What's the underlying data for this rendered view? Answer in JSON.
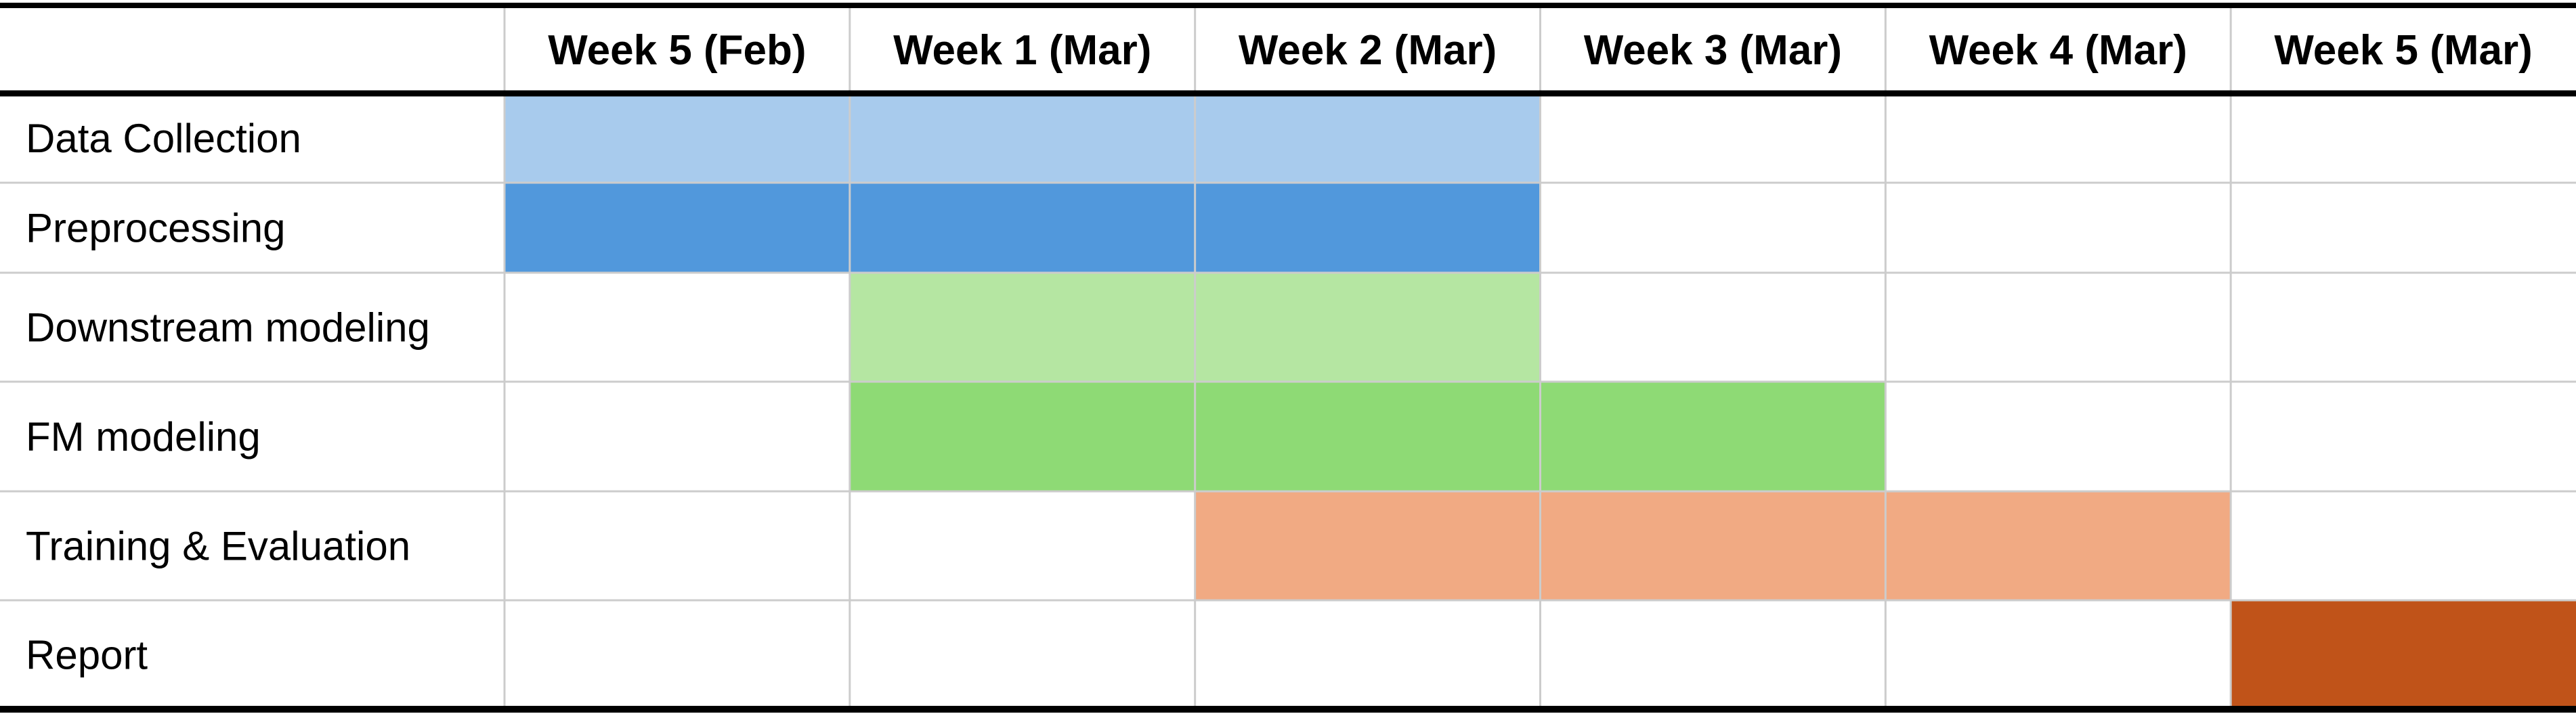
{
  "chart_data": {
    "type": "table",
    "title": "",
    "columns": [
      "Week 5 (Feb)",
      "Week 1 (Mar)",
      "Week 2 (Mar)",
      "Week 3 (Mar)",
      "Week 4 (Mar)",
      "Week 5 (Mar)"
    ],
    "tasks": [
      {
        "name": "Data Collection",
        "start": 0,
        "end": 2,
        "color": "#a8cbed"
      },
      {
        "name": "Preprocessing",
        "start": 0,
        "end": 2,
        "color": "#5198dc"
      },
      {
        "name": "Downstream modeling",
        "start": 1,
        "end": 2,
        "color": "#b5e6a2"
      },
      {
        "name": "FM modeling",
        "start": 1,
        "end": 3,
        "color": "#8eda75"
      },
      {
        "name": "Training & Evaluation",
        "start": 2,
        "end": 4,
        "color": "#f1aa83"
      },
      {
        "name": "Report",
        "start": 5,
        "end": 5,
        "color": "#c05319"
      }
    ],
    "grid_color": "#cccccc",
    "border_color": "#000000"
  }
}
